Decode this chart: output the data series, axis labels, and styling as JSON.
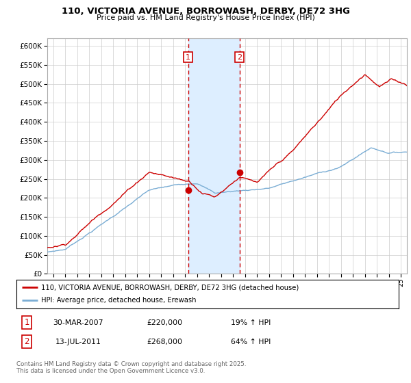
{
  "title_line1": "110, VICTORIA AVENUE, BORROWASH, DERBY, DE72 3HG",
  "title_line2": "Price paid vs. HM Land Registry's House Price Index (HPI)",
  "legend_label_red": "110, VICTORIA AVENUE, BORROWASH, DERBY, DE72 3HG (detached house)",
  "legend_label_blue": "HPI: Average price, detached house, Erewash",
  "annotation1_label": "1",
  "annotation1_date": "30-MAR-2007",
  "annotation1_price": "£220,000",
  "annotation1_hpi": "19% ↑ HPI",
  "annotation2_label": "2",
  "annotation2_date": "13-JUL-2011",
  "annotation2_price": "£268,000",
  "annotation2_hpi": "64% ↑ HPI",
  "footer": "Contains HM Land Registry data © Crown copyright and database right 2025.\nThis data is licensed under the Open Government Licence v3.0.",
  "ylim": [
    0,
    620000
  ],
  "yticks": [
    0,
    50000,
    100000,
    150000,
    200000,
    250000,
    300000,
    350000,
    400000,
    450000,
    500000,
    550000,
    600000
  ],
  "ytick_labels": [
    "£0",
    "£50K",
    "£100K",
    "£150K",
    "£200K",
    "£250K",
    "£300K",
    "£350K",
    "£400K",
    "£450K",
    "£500K",
    "£550K",
    "£600K"
  ],
  "red_color": "#cc0000",
  "blue_color": "#7aadd4",
  "annotation_vline_color": "#cc0000",
  "shading_color": "#ddeeff",
  "background_color": "#ffffff",
  "grid_color": "#cccccc",
  "marker1_x": 2007.25,
  "marker1_y": 220000,
  "marker2_x": 2011.54,
  "marker2_y": 268000,
  "xmin": 1995.5,
  "xmax": 2025.5,
  "dot_color": "#cc0000"
}
